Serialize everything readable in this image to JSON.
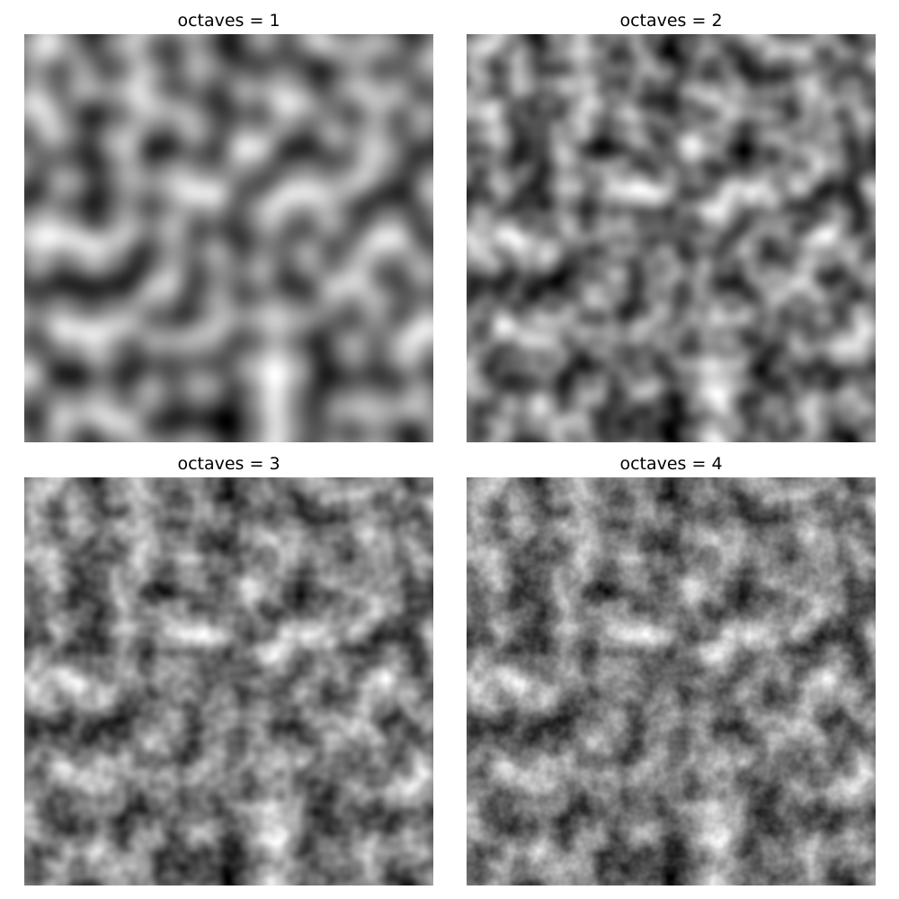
{
  "figure": {
    "colormap": "gray",
    "panels": [
      {
        "title": "octaves = 1",
        "octaves": 1
      },
      {
        "title": "octaves = 2",
        "octaves": 2
      },
      {
        "title": "octaves = 3",
        "octaves": 3
      },
      {
        "title": "octaves = 4",
        "octaves": 4
      }
    ]
  }
}
